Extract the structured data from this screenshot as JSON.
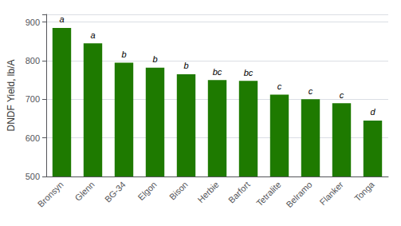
{
  "chart_data": {
    "type": "bar",
    "categories": [
      "Bronsyn",
      "Glenn",
      "BG-34",
      "Elgon",
      "Bison",
      "Herbie",
      "Barfort",
      "Tetralite",
      "Belramo",
      "Flanker",
      "Tonga"
    ],
    "values": [
      885,
      845,
      795,
      782,
      765,
      750,
      748,
      712,
      700,
      690,
      645
    ],
    "annotations": [
      "a",
      "a",
      "b",
      "b",
      "b",
      "bc",
      "bc",
      "c",
      "c",
      "c",
      "d"
    ],
    "color": "#1e7a00",
    "ylabel": "DNDF Yield, lb/A",
    "ylim": [
      500,
      920
    ],
    "yticks": [
      500,
      600,
      700,
      800,
      900
    ],
    "grid": true
  }
}
